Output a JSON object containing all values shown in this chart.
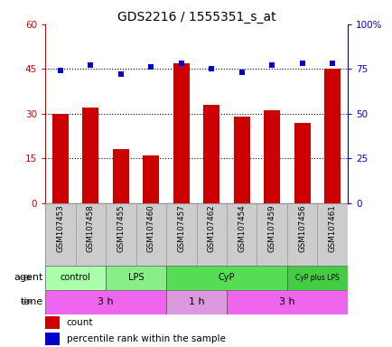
{
  "title": "GDS2216 / 1555351_s_at",
  "samples": [
    "GSM107453",
    "GSM107458",
    "GSM107455",
    "GSM107460",
    "GSM107457",
    "GSM107462",
    "GSM107454",
    "GSM107459",
    "GSM107456",
    "GSM107461"
  ],
  "counts": [
    30,
    32,
    18,
    16,
    47,
    33,
    29,
    31,
    27,
    45
  ],
  "percentiles": [
    74,
    77,
    72,
    76,
    78,
    75,
    73,
    77,
    78,
    78
  ],
  "ylim_left": [
    0,
    60
  ],
  "ylim_right": [
    0,
    100
  ],
  "yticks_left": [
    0,
    15,
    30,
    45,
    60
  ],
  "yticks_right": [
    0,
    25,
    50,
    75,
    100
  ],
  "ytick_labels_left": [
    "0",
    "15",
    "30",
    "45",
    "60"
  ],
  "ytick_labels_right": [
    "0",
    "25",
    "50",
    "75",
    "100%"
  ],
  "bar_color": "#cc0000",
  "dot_color": "#0000cc",
  "agent_groups": [
    {
      "label": "control",
      "start": 0,
      "end": 2,
      "color": "#aaffaa"
    },
    {
      "label": "LPS",
      "start": 2,
      "end": 4,
      "color": "#88ee88"
    },
    {
      "label": "CyP",
      "start": 4,
      "end": 8,
      "color": "#55dd55"
    },
    {
      "label": "CyP plus LPS",
      "start": 8,
      "end": 10,
      "color": "#44cc44"
    }
  ],
  "time_groups": [
    {
      "label": "3 h",
      "start": 0,
      "end": 4,
      "color": "#ee66ee"
    },
    {
      "label": "1 h",
      "start": 4,
      "end": 6,
      "color": "#dd99dd"
    },
    {
      "label": "3 h",
      "start": 6,
      "end": 10,
      "color": "#ee66ee"
    }
  ],
  "agent_label": "agent",
  "time_label": "time",
  "legend_count_label": "count",
  "legend_pct_label": "percentile rank within the sample",
  "bg_color": "#ffffff",
  "plot_bg": "#ffffff",
  "tick_area_bg": "#cccccc",
  "arrow_color": "#888888"
}
